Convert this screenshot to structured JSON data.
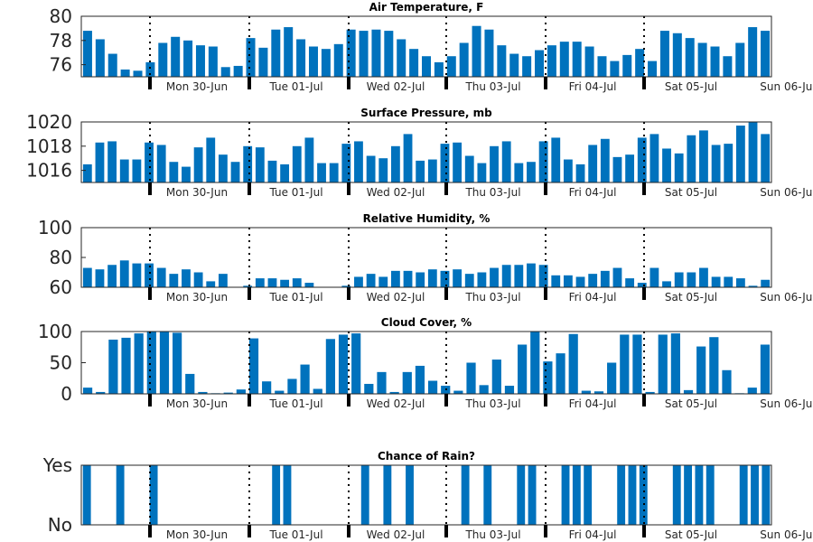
{
  "chart_data": [
    {
      "type": "bar",
      "title": "Air Temperature, F",
      "ylim": [
        75,
        80
      ],
      "yticks": [
        "76",
        "78",
        "80"
      ],
      "ytick_values": [
        76,
        78,
        80
      ],
      "color": "#0072BD",
      "values": [
        78.8,
        78.1,
        76.9,
        75.6,
        75.5,
        76.2,
        77.8,
        78.3,
        78.0,
        77.6,
        77.5,
        75.8,
        75.9,
        78.2,
        77.4,
        78.9,
        79.1,
        78.1,
        77.5,
        77.3,
        77.7,
        78.9,
        78.8,
        78.9,
        78.8,
        78.1,
        77.3,
        76.7,
        76.2,
        76.7,
        77.8,
        79.2,
        78.9,
        77.6,
        76.9,
        76.7,
        77.2,
        77.6,
        77.9,
        77.9,
        77.5,
        76.7,
        76.3,
        76.8,
        77.3,
        76.3,
        78.8,
        78.6,
        78.2,
        77.8,
        77.5,
        76.7,
        77.8,
        79.1,
        78.8
      ]
    },
    {
      "type": "bar",
      "title": "Surface Pressure, mb",
      "ylim": [
        1015,
        1020
      ],
      "yticks": [
        "1016",
        "1018",
        "1020"
      ],
      "ytick_values": [
        1016,
        1018,
        1020
      ],
      "color": "#0072BD",
      "values": [
        1016.5,
        1018.3,
        1018.4,
        1016.9,
        1016.9,
        1018.3,
        1018.1,
        1016.7,
        1016.3,
        1017.9,
        1018.7,
        1017.3,
        1016.7,
        1018.0,
        1017.9,
        1016.8,
        1016.5,
        1018.0,
        1018.7,
        1016.6,
        1016.6,
        1018.2,
        1018.4,
        1017.2,
        1017.0,
        1018.0,
        1019.0,
        1016.8,
        1016.9,
        1018.2,
        1018.3,
        1017.2,
        1016.6,
        1018.0,
        1018.4,
        1016.6,
        1016.7,
        1018.4,
        1018.7,
        1016.9,
        1016.5,
        1018.1,
        1018.6,
        1017.1,
        1017.3,
        1018.7,
        1019.0,
        1017.8,
        1017.4,
        1018.9,
        1019.3,
        1018.1,
        1018.2,
        1019.7,
        1020.0,
        1019.0
      ]
    },
    {
      "type": "bar",
      "title": "Relative Humidity, %",
      "ylim": [
        60,
        100
      ],
      "yticks": [
        "60",
        "80",
        "100"
      ],
      "ytick_values": [
        60,
        80,
        100
      ],
      "color": "#0072BD",
      "values": [
        73,
        72,
        75,
        78,
        76,
        76,
        73,
        69,
        72,
        70,
        64,
        69,
        60,
        61,
        66,
        66,
        65,
        66,
        63,
        60,
        60,
        61,
        67,
        69,
        67,
        71,
        71,
        70,
        72,
        71,
        72,
        69,
        70,
        73,
        75,
        75,
        76,
        75,
        68,
        68,
        67,
        69,
        71,
        73,
        66,
        63,
        73,
        64,
        70,
        70,
        73,
        67,
        67,
        66,
        61,
        65
      ]
    },
    {
      "type": "bar",
      "title": "Cloud Cover, %",
      "ylim": [
        0,
        100
      ],
      "yticks": [
        "0",
        "50",
        "100"
      ],
      "ytick_values": [
        0,
        50,
        100
      ],
      "color": "#0072BD",
      "values": [
        10,
        3,
        87,
        90,
        97,
        100,
        100,
        98,
        32,
        3,
        1,
        2,
        7,
        89,
        20,
        5,
        24,
        47,
        8,
        88,
        95,
        97,
        16,
        35,
        3,
        35,
        45,
        21,
        13,
        5,
        50,
        14,
        55,
        13,
        79,
        100,
        52,
        65,
        96,
        5,
        4,
        50,
        95,
        95,
        3,
        95,
        97,
        6,
        76,
        91,
        38,
        1,
        10,
        79
      ]
    },
    {
      "type": "bar",
      "title": "Chance of Rain?",
      "ylim": [
        0,
        1
      ],
      "yticks": [
        "No",
        "Yes"
      ],
      "ytick_values": [
        0,
        1
      ],
      "color": "#0072BD",
      "values": [
        1,
        0,
        0,
        1,
        0,
        0,
        1,
        0,
        0,
        0,
        0,
        0,
        0,
        0,
        0,
        0,
        0,
        1,
        1,
        0,
        0,
        0,
        0,
        0,
        0,
        1,
        0,
        1,
        0,
        1,
        0,
        0,
        0,
        0,
        1,
        0,
        1,
        0,
        0,
        1,
        1,
        0,
        0,
        1,
        1,
        1,
        0,
        0,
        1,
        1,
        1,
        0,
        0,
        1,
        1,
        1,
        1,
        0,
        0,
        1,
        1,
        1
      ]
    }
  ],
  "x_axis": {
    "day_labels": [
      "Mon 30-Jun",
      "Tue 01-Jul",
      "Wed 02-Jul",
      "Thu 03-Jul",
      "Fri 04-Jul",
      "Sat 05-Jul",
      "Sun 06-Jul"
    ]
  }
}
